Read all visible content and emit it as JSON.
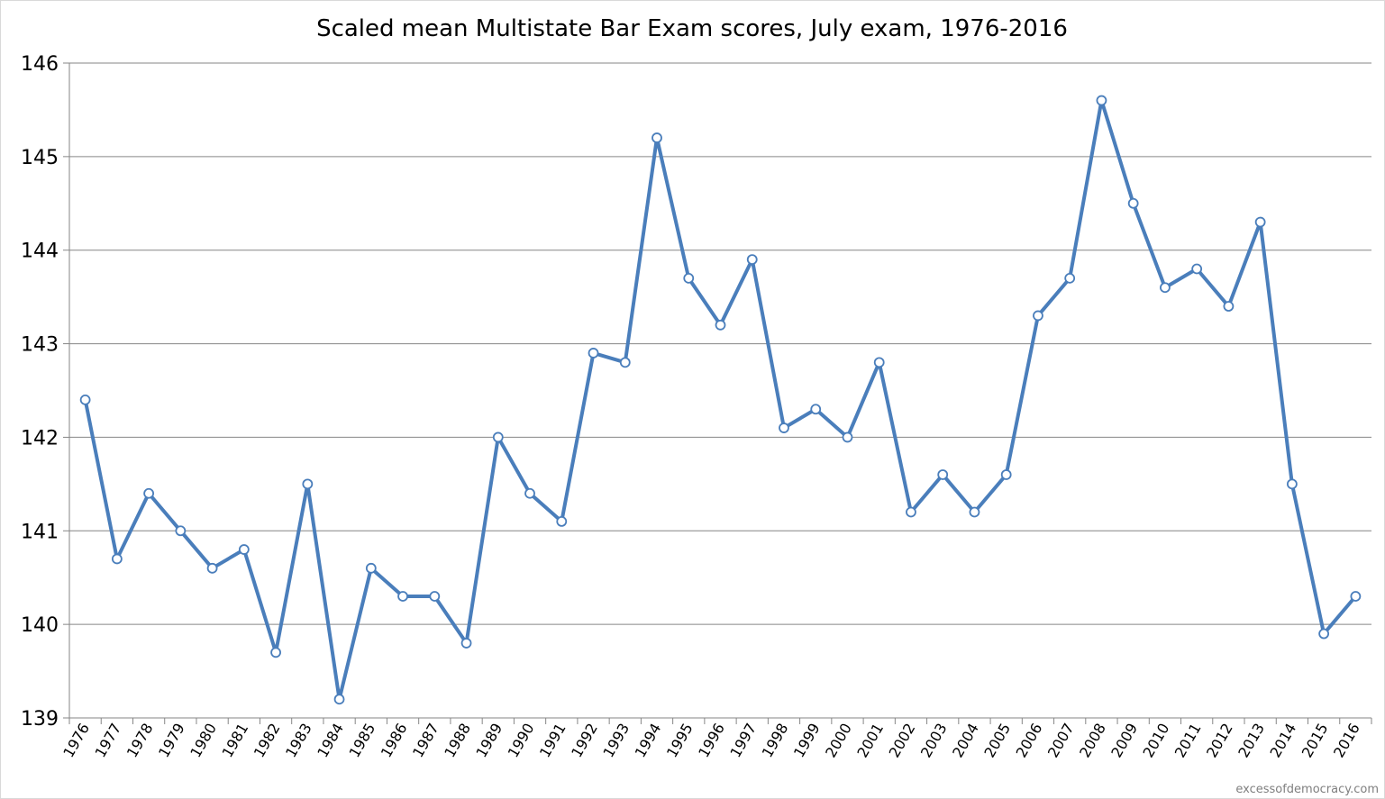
{
  "chart_data": {
    "type": "line",
    "title": "Scaled mean Multistate Bar Exam scores, July exam, 1976-2016",
    "xlabel": "",
    "ylabel": "",
    "ylim": [
      139,
      146
    ],
    "yticks": [
      "139",
      "140",
      "141",
      "142",
      "143",
      "144",
      "145",
      "146"
    ],
    "grid": true,
    "legend": "none",
    "categories": [
      "1976",
      "1977",
      "1978",
      "1979",
      "1980",
      "1981",
      "1982",
      "1983",
      "1984",
      "1985",
      "1986",
      "1987",
      "1988",
      "1989",
      "1990",
      "1991",
      "1992",
      "1993",
      "1994",
      "1995",
      "1996",
      "1997",
      "1998",
      "1999",
      "2000",
      "2001",
      "2002",
      "2003",
      "2004",
      "2005",
      "2006",
      "2007",
      "2008",
      "2009",
      "2010",
      "2011",
      "2012",
      "2013",
      "2014",
      "2015",
      "2016"
    ],
    "series": [
      {
        "values": [
          142.4,
          140.7,
          141.4,
          141.0,
          140.6,
          140.8,
          139.7,
          141.5,
          139.2,
          140.6,
          140.3,
          140.3,
          139.8,
          142.0,
          141.4,
          141.1,
          142.9,
          142.8,
          145.2,
          143.7,
          143.2,
          143.9,
          142.1,
          142.3,
          142.0,
          142.8,
          141.2,
          141.6,
          141.2,
          141.6,
          143.3,
          143.7,
          145.6,
          144.5,
          143.6,
          143.8,
          143.4,
          144.3,
          141.5,
          139.9,
          140.3
        ],
        "color": "#4a7ebb"
      }
    ],
    "source_credit": "excessofdemocracy.com"
  }
}
